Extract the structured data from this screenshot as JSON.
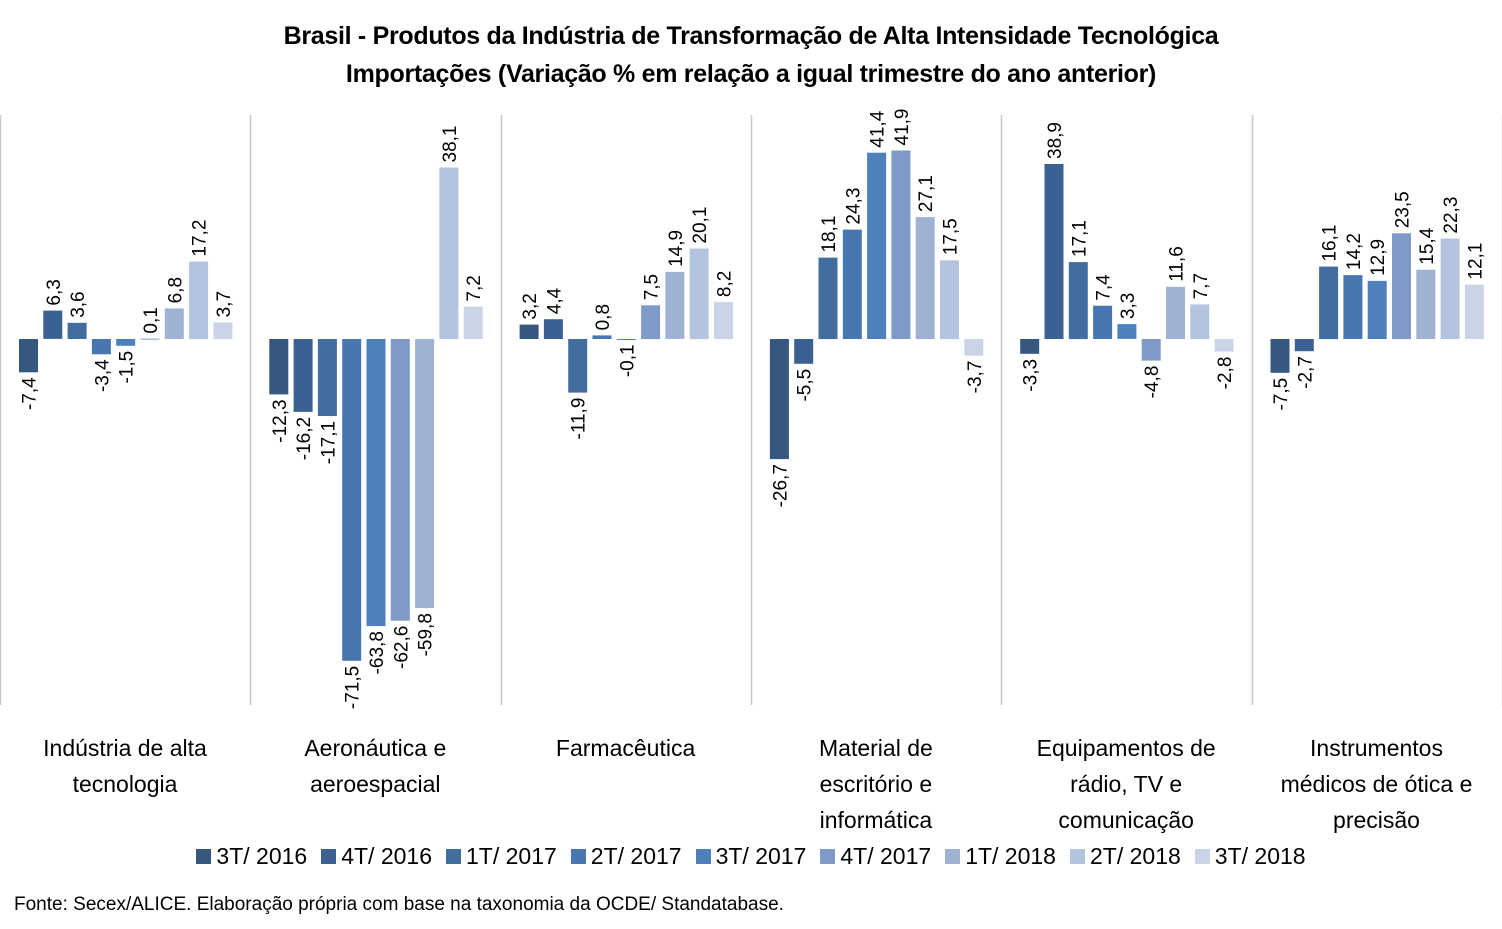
{
  "chart_data": {
    "type": "bar",
    "title": "Brasil - Produtos da Indústria de Transformação de Alta Intensidade Tecnológica",
    "subtitle": "Importações (Variação % em relação a igual trimestre do ano anterior)",
    "xlabel": "",
    "ylabel": "",
    "ylim": [
      -80,
      50
    ],
    "grid": false,
    "legend_position": "bottom",
    "categories": [
      "Indústria de alta tecnologia",
      "Aeronáutica e aeroespacial",
      "Farmacêutica",
      "Material de escritório e informática",
      "Equipamentos de rádio, TV e comunicação",
      "Instrumentos médicos de ótica e precisão"
    ],
    "category_lines": [
      [
        "Indústria de alta",
        "tecnologia"
      ],
      [
        "Aeronáutica e",
        "aeroespacial"
      ],
      [
        "Farmacêutica"
      ],
      [
        "Material de",
        "escritório e",
        "informática"
      ],
      [
        "Equipamentos de",
        "rádio, TV e",
        "comunicação"
      ],
      [
        "Instrumentos",
        "médicos de ótica e",
        "precisão"
      ]
    ],
    "series": [
      {
        "name": "3T/ 2016",
        "color": "#36587f",
        "values": [
          -7.4,
          -12.3,
          3.2,
          -26.7,
          -3.3,
          -7.5
        ]
      },
      {
        "name": "4T/ 2016",
        "color": "#3b6192",
        "values": [
          6.3,
          -16.2,
          4.4,
          -5.5,
          38.9,
          -2.7
        ]
      },
      {
        "name": "1T/ 2017",
        "color": "#416d9f",
        "values": [
          3.6,
          -17.1,
          -11.9,
          18.1,
          17.1,
          16.1
        ]
      },
      {
        "name": "2T/ 2017",
        "color": "#4876b0",
        "values": [
          -3.4,
          -71.5,
          0.8,
          24.3,
          7.4,
          14.2
        ]
      },
      {
        "name": "3T/ 2017",
        "color": "#4e80bb",
        "values": [
          -1.5,
          -63.8,
          -0.1,
          41.4,
          3.3,
          12.9
        ]
      },
      {
        "name": "4T/ 2017",
        "color": "#7d9bc6",
        "values": [
          0.1,
          -62.6,
          7.5,
          41.9,
          -4.8,
          23.5
        ]
      },
      {
        "name": "1T/ 2018",
        "color": "#9fb2d4",
        "values": [
          6.8,
          -59.8,
          14.9,
          27.1,
          11.6,
          15.4
        ]
      },
      {
        "name": "2T/ 2018",
        "color": "#b5c4de",
        "values": [
          17.2,
          38.1,
          20.1,
          17.5,
          7.7,
          22.3
        ]
      },
      {
        "name": "3T/ 2018",
        "color": "#cad4e6",
        "values": [
          3.7,
          7.2,
          8.2,
          -3.7,
          -2.8,
          12.1
        ]
      }
    ],
    "data_labels": [
      [
        "-7,4",
        "-12,3",
        "3,2",
        "-26,7",
        "-3,3",
        "-7,5"
      ],
      [
        "6,3",
        "-16,2",
        "4,4",
        "-5,5",
        "38,9",
        "-2,7"
      ],
      [
        "3,6",
        "-17,1",
        "-11,9",
        "18,1",
        "17,1",
        "16,1"
      ],
      [
        "-3,4",
        "-71,5",
        "0,8",
        "24,3",
        "7,4",
        "14,2"
      ],
      [
        "-1,5",
        "-63,8",
        "-0,1",
        "41,4",
        "3,3",
        "12,9"
      ],
      [
        "0,1",
        "-62,6",
        "7,5",
        "41,9",
        "-4,8",
        "23,5"
      ],
      [
        "6,8",
        "-59,8",
        "14,9",
        "27,1",
        "11,6",
        "15,4"
      ],
      [
        "17,2",
        "38,1",
        "20,1",
        "17,5",
        "7,7",
        "22,3"
      ],
      [
        "3,7",
        "7,2",
        "8,2",
        "-3,7",
        "-2,8",
        "12,1"
      ]
    ]
  },
  "source_note": "Fonte: Secex/ALICE. Elaboração própria com base na taxonomia da OCDE/ Standatabase."
}
